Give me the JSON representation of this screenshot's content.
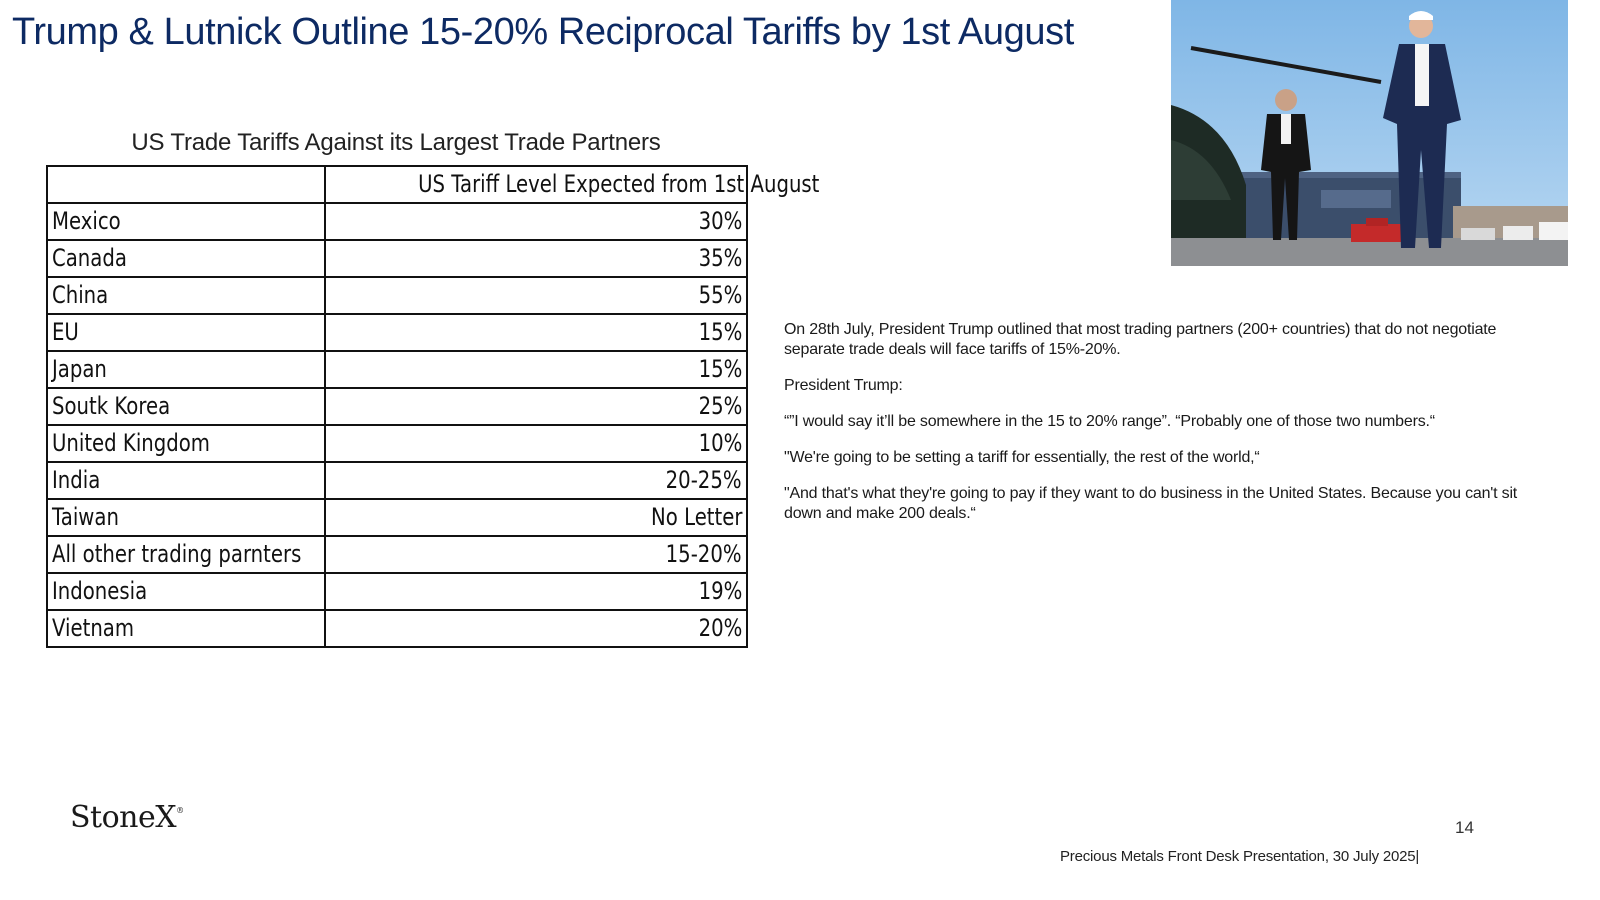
{
  "title": "Trump & Lutnick Outline 15-20% Reciprocal Tariffs by 1st August",
  "table": {
    "heading": "US Trade Tariffs Against its Largest Trade Partners",
    "header_country": "",
    "header_value": "US Tariff Level Expected from 1st August",
    "rows": [
      {
        "country": "Mexico",
        "tariff": "30%"
      },
      {
        "country": "Canada",
        "tariff": "35%"
      },
      {
        "country": "China",
        "tariff": "55%"
      },
      {
        "country": "EU",
        "tariff": "15%"
      },
      {
        "country": "Japan",
        "tariff": "15%"
      },
      {
        "country": "Soutk Korea",
        "tariff": "25%"
      },
      {
        "country": "United Kingdom",
        "tariff": "10%"
      },
      {
        "country": "India",
        "tariff": "20-25%"
      },
      {
        "country": "Taiwan",
        "tariff": "No Letter"
      },
      {
        "country": "All other trading parnters",
        "tariff": "15-20%"
      },
      {
        "country": "Indonesia",
        "tariff": "19%"
      },
      {
        "country": "Vietnam",
        "tariff": "20%"
      }
    ]
  },
  "commentary": {
    "intro": "On 28th July, President Trump outlined that most trading partners (200+ countries) that do not negotiate separate trade deals will face tariffs of 15%-20%.",
    "speaker": "President Trump:",
    "quote_1": "“”I would say it’ll be somewhere in the 15 to 20% range”. “Probably one of those two numbers.“",
    "quote_2": "\"We're going to be setting a tariff for essentially, the rest of the world,“",
    "quote_3": " \"And that's what they're going to pay if they want to do business in the United States. Because you can't sit down and make 200 deals.“"
  },
  "footer": {
    "logo": "StoneX",
    "logo_mark": "®",
    "page_number": "14",
    "presentation": "Precious Metals Front Desk Presentation, 30 July 2025|"
  },
  "colors": {
    "title": "#0d2a63",
    "table_border": "#111111"
  }
}
